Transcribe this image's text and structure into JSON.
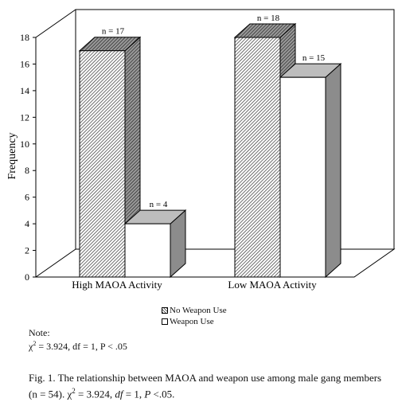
{
  "chart_data": {
    "type": "bar",
    "ylabel": "Frequency",
    "xlabel": "",
    "ylim": [
      0,
      18
    ],
    "yticks": [
      "0",
      "2",
      "4",
      "6",
      "8",
      "10",
      "12",
      "14",
      "16",
      "18"
    ],
    "categories": [
      "High MAOA Activity",
      "Low MAOA Activity"
    ],
    "series": [
      {
        "name": "No Weapon Use",
        "values": [
          17,
          18
        ],
        "labels": [
          "n = 17",
          "n = 18"
        ],
        "fill": "hatched"
      },
      {
        "name": "Weapon Use",
        "values": [
          4,
          15
        ],
        "labels": [
          "n = 4",
          "n = 15"
        ],
        "fill": "white"
      }
    ],
    "legend_position": "bottom",
    "grid": false,
    "style": "3d"
  },
  "note": {
    "heading": "Note:",
    "stat_chi": "χ",
    "stat_sup": "2",
    "stat_rest": " = 3.924, df = 1, P < .05"
  },
  "caption": {
    "text_before": "Fig. 1. The relationship between MAOA and weapon use among male gang members (n = 54). ",
    "chi": "χ",
    "sup": "2",
    "eq": " = 3.924, ",
    "df": "df",
    "df_rest": " = 1, ",
    "p": "P",
    "p_rest": " <.05."
  },
  "colors": {
    "text": "#111111",
    "hatch": "#333333",
    "side": "#8c8c8c",
    "top_gray": "#bdbdbd"
  }
}
